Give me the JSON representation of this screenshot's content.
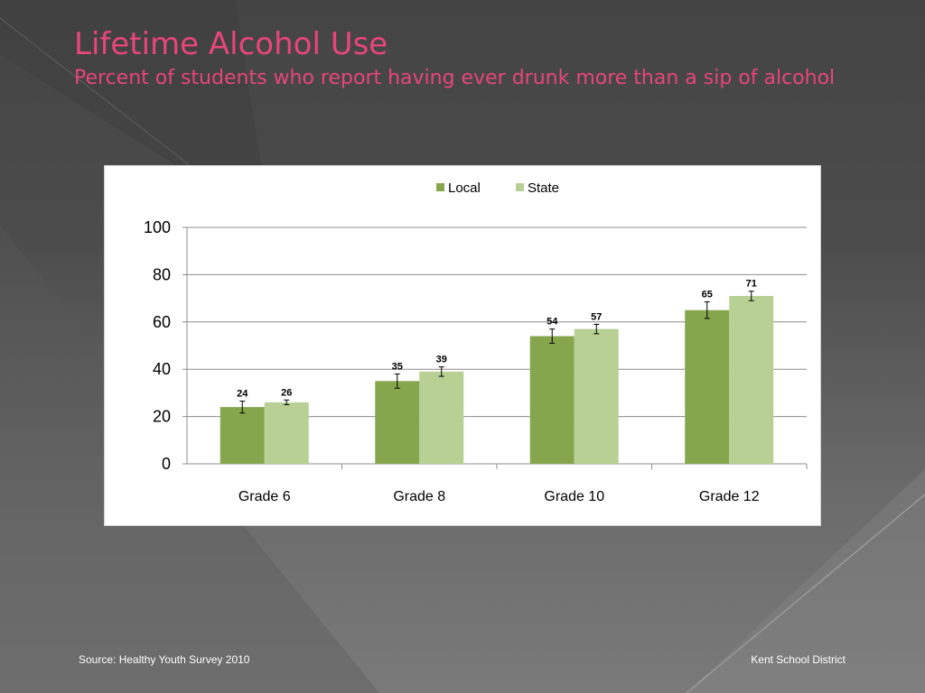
{
  "slide": {
    "title": "Lifetime Alcohol Use",
    "subtitle": "Percent of students who report having ever drunk more than a sip of alcohol",
    "source": "Source: Healthy Youth Survey 2010",
    "organization": "Kent School District"
  },
  "colors": {
    "title": "#e8457a",
    "local": "#86a64e",
    "state": "#b8d094"
  },
  "chart_data": {
    "type": "bar",
    "categories": [
      "Grade 6",
      "Grade 8",
      "Grade 10",
      "Grade 12"
    ],
    "series": [
      {
        "name": "Local",
        "values": [
          24,
          35,
          54,
          65
        ],
        "error": [
          2.5,
          3,
          3,
          3.5
        ],
        "color": "#86a64e"
      },
      {
        "name": "State",
        "values": [
          26,
          39,
          57,
          71
        ],
        "error": [
          1,
          2,
          2,
          2
        ],
        "color": "#b8d094"
      }
    ],
    "data_labels": [
      [
        "24",
        "35",
        "54",
        "65"
      ],
      [
        "26",
        "39",
        "57",
        "71"
      ]
    ],
    "ylim": [
      0,
      100
    ],
    "yticks": [
      "0",
      "20",
      "40",
      "60",
      "80",
      "100"
    ],
    "grid": true,
    "legend": "top-center"
  }
}
